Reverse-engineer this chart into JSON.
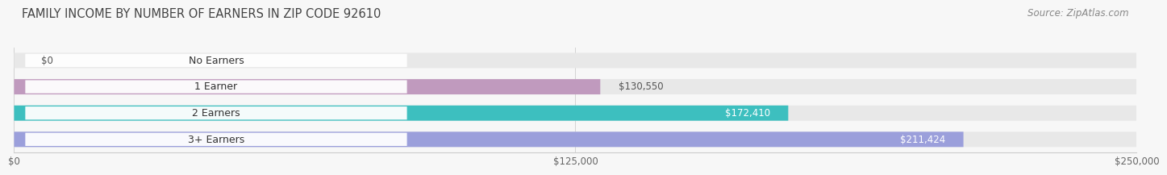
{
  "title": "FAMILY INCOME BY NUMBER OF EARNERS IN ZIP CODE 92610",
  "source": "Source: ZipAtlas.com",
  "categories": [
    "No Earners",
    "1 Earner",
    "2 Earners",
    "3+ Earners"
  ],
  "values": [
    0,
    130550,
    172410,
    211424
  ],
  "labels": [
    "$0",
    "$130,550",
    "$172,410",
    "$211,424"
  ],
  "bar_colors": [
    "#a8c4e0",
    "#c09abe",
    "#3dbfbf",
    "#9b9fdb"
  ],
  "bar_bg_color": "#e8e8e8",
  "label_colors_outside": [
    "#555555",
    "#555555",
    "#ffffff",
    "#ffffff"
  ],
  "xlim": [
    0,
    250000
  ],
  "xtick_labels": [
    "$0",
    "$125,000",
    "$250,000"
  ],
  "background_color": "#f7f7f7",
  "title_fontsize": 10.5,
  "source_fontsize": 8.5,
  "bar_label_fontsize": 8.5,
  "category_fontsize": 9,
  "tick_fontsize": 8.5
}
